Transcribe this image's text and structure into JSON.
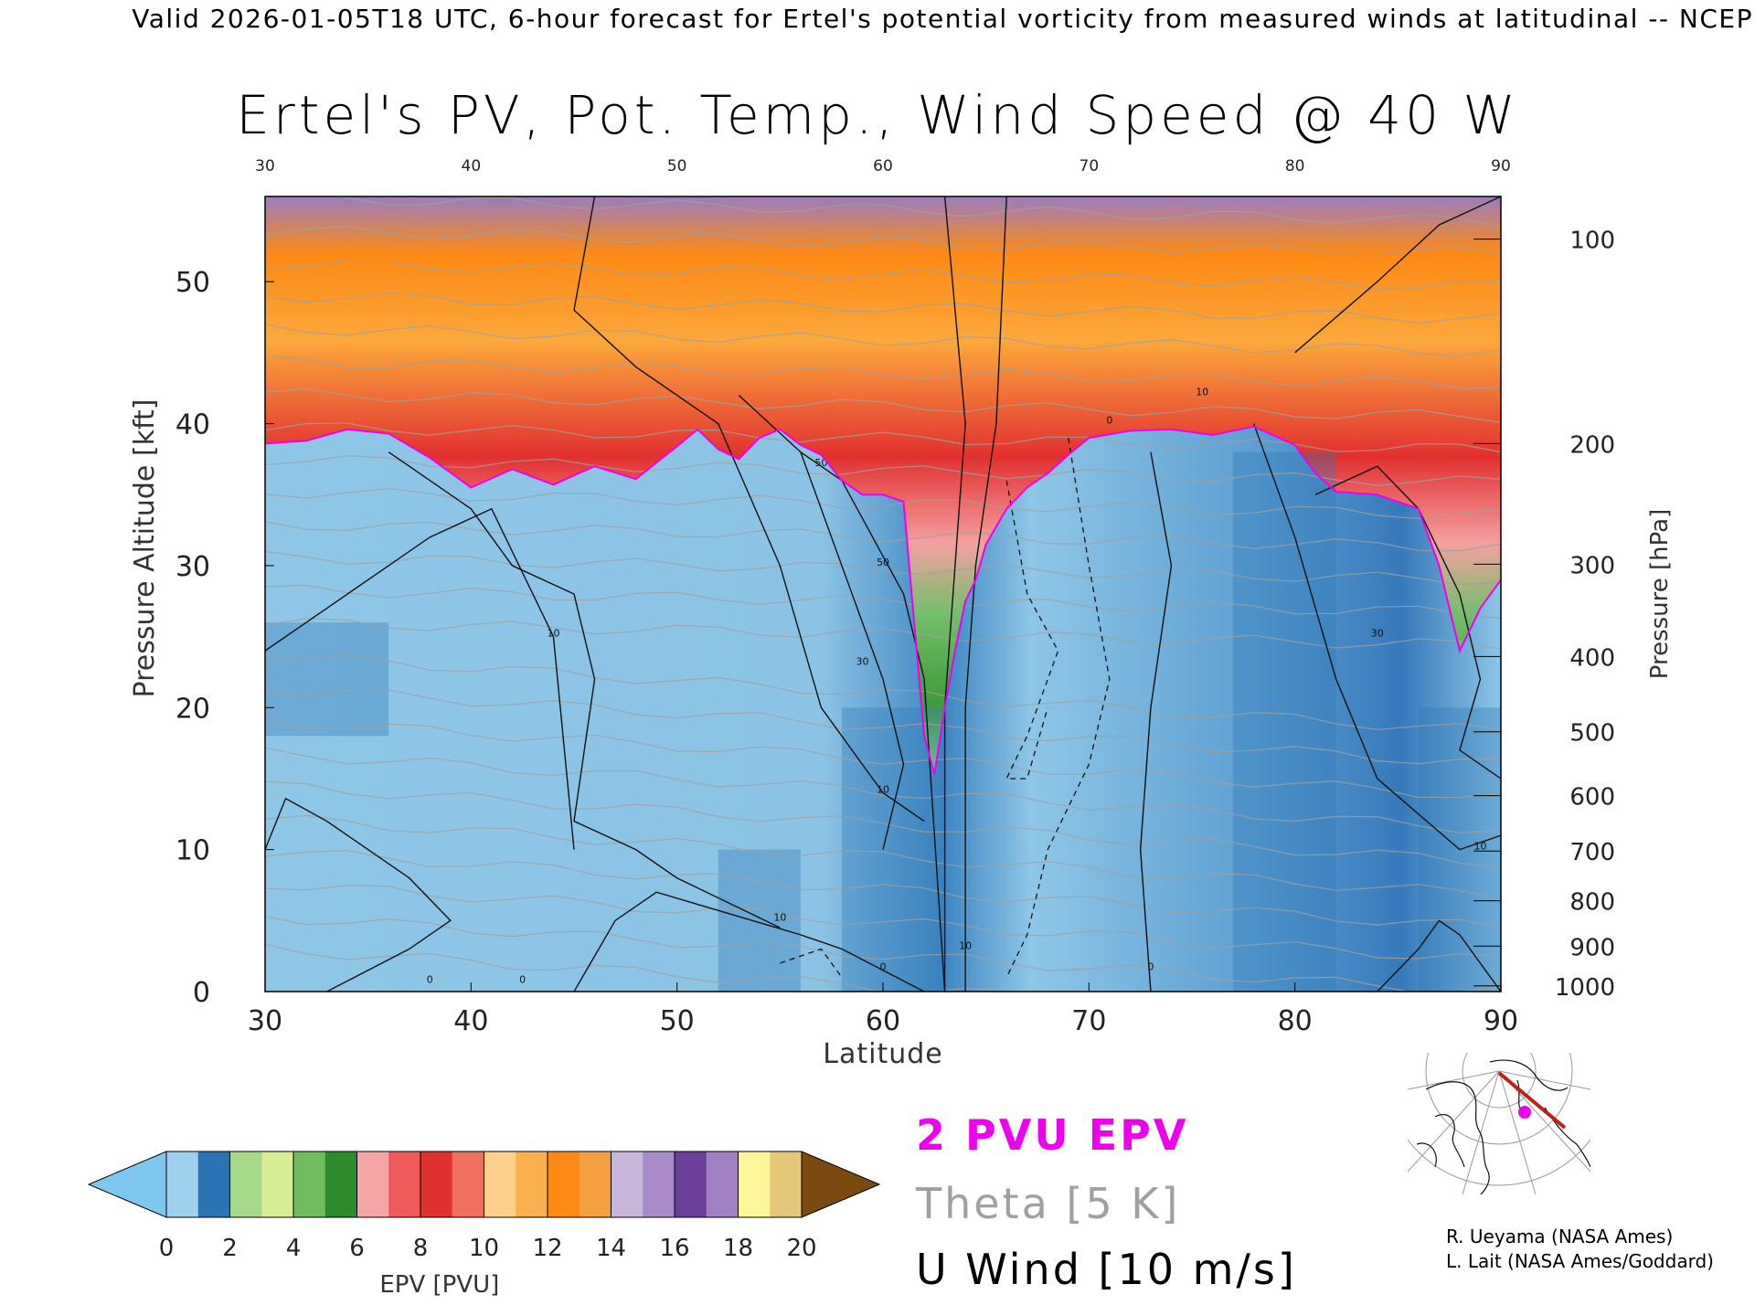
{
  "header": {
    "text": "Valid 2026-01-05T18 UTC, 6-hour forecast for Ertel's potential vorticity from measured winds at latitudinal -- NCEP"
  },
  "chart_data": {
    "type": "heatmap",
    "title": "Ertel's PV, Pot. Temp., Wind Speed @ 40 W",
    "xlabel": "Latitude",
    "ylabel_left": "Pressure Altitude [kft]",
    "ylabel_right": "Pressure [hPa]",
    "xlim": [
      30,
      90
    ],
    "ylim": [
      0,
      56
    ],
    "x_ticks": [
      30,
      40,
      50,
      60,
      70,
      80,
      90
    ],
    "x_tick_labels": [
      "30",
      "40",
      "50",
      "60",
      "70",
      "80",
      "90"
    ],
    "top_ticks": [
      30,
      40,
      50,
      60,
      70,
      80,
      90
    ],
    "top_tick_labels": [
      "30",
      "40",
      "50",
      "60",
      "70",
      "80",
      "90"
    ],
    "y_ticks": [
      0,
      10,
      20,
      30,
      40,
      50
    ],
    "y_tick_labels": [
      "0",
      "10",
      "20",
      "30",
      "40",
      "50"
    ],
    "pressure_ticks": [
      {
        "hPa": "100",
        "kft": 53.0
      },
      {
        "hPa": "200",
        "kft": 38.6
      },
      {
        "hPa": "300",
        "kft": 30.1
      },
      {
        "hPa": "400",
        "kft": 23.6
      },
      {
        "hPa": "500",
        "kft": 18.3
      },
      {
        "hPa": "600",
        "kft": 13.8
      },
      {
        "hPa": "700",
        "kft": 9.9
      },
      {
        "hPa": "800",
        "kft": 6.4
      },
      {
        "hPa": "900",
        "kft": 3.2
      },
      {
        "hPa": "1000",
        "kft": 0.4
      }
    ],
    "tropopause_2pvu_kft": {
      "lat": [
        30,
        32,
        34,
        36,
        38,
        40,
        42,
        44,
        46,
        48,
        50,
        51,
        52,
        53,
        54,
        55,
        56,
        57,
        58,
        59,
        60,
        61,
        62,
        62.5,
        63,
        63.5,
        64,
        64.5,
        65,
        66,
        67,
        68,
        69,
        70,
        72,
        74,
        76,
        78,
        80,
        81,
        82,
        84,
        86,
        87,
        88,
        89,
        90
      ],
      "kft": [
        38.6,
        38.8,
        39.6,
        39.3,
        37.6,
        35.5,
        36.8,
        35.7,
        37.0,
        36.1,
        38.4,
        39.6,
        38.2,
        37.5,
        39.0,
        39.6,
        38.5,
        37.8,
        36.0,
        35.0,
        35.0,
        34.5,
        18.0,
        15.3,
        20.0,
        24.0,
        27.5,
        29.0,
        31.5,
        34.0,
        35.5,
        36.5,
        37.8,
        39.0,
        39.5,
        39.6,
        39.2,
        39.8,
        38.5,
        36.5,
        35.2,
        35.0,
        34.0,
        30.0,
        24.0,
        27.0,
        29.0
      ]
    },
    "pv_levels": [
      0,
      1,
      2,
      3,
      4,
      5,
      6,
      7,
      8,
      9,
      10,
      11,
      12,
      13,
      14,
      15,
      16,
      17,
      18,
      19,
      20
    ],
    "pv_colors": [
      "#8fc6e6",
      "#2f80c0",
      "#a6d98a",
      "#c9ea8e",
      "#74c06b",
      "#3e9a3a",
      "#f4a0a0",
      "#f27a7a",
      "#e23030",
      "#e86a56",
      "#fdc57d",
      "#fba83c",
      "#fd8a14",
      "#f6a350",
      "#c7b2d9",
      "#9a7cc0",
      "#6a3e99",
      "#b58ecf",
      "#fdf7a0",
      "#e8d28b",
      "#7a4a10"
    ],
    "theta_levels_K": [
      290,
      300,
      310,
      320,
      330,
      340,
      350,
      360,
      370,
      380,
      390,
      400
    ],
    "wind_contour_labels": [
      "0",
      "10",
      "30",
      "50"
    ],
    "colorbar": {
      "label": "EPV [PVU]",
      "tick_labels": [
        "0",
        "2",
        "4",
        "6",
        "8",
        "10",
        "12",
        "14",
        "16",
        "18",
        "20"
      ],
      "colors": [
        "#9fd0ee",
        "#2a74b5",
        "#a6d98a",
        "#d7ed95",
        "#6fbd5f",
        "#2d8a2d",
        "#f5a5a5",
        "#ef5a5a",
        "#e03030",
        "#f07060",
        "#fdd08c",
        "#fbb050",
        "#fd8a14",
        "#f4a040",
        "#c9b6db",
        "#a98bc9",
        "#6a3e99",
        "#a080c0",
        "#fdf59a",
        "#e6c87a"
      ],
      "under_color": "#7ec8f0",
      "over_color": "#7a4a10"
    },
    "legend": [
      {
        "label": "2 PVU EPV",
        "color": "#ee00ee"
      },
      {
        "label": "Theta [5 K]",
        "color": "#a0a0a0"
      },
      {
        "label": "U Wind [10 m/s]",
        "color": "#000000"
      }
    ],
    "grid": false
  },
  "credits": {
    "line1": "R. Ueyama (NASA Ames)",
    "line2": "L. Lait (NASA Ames/Goddard)"
  },
  "map_inset": {
    "icon": "polar-stereographic-map-icon",
    "track_color": "#c0201a",
    "marker_color": "#ee00ee"
  }
}
